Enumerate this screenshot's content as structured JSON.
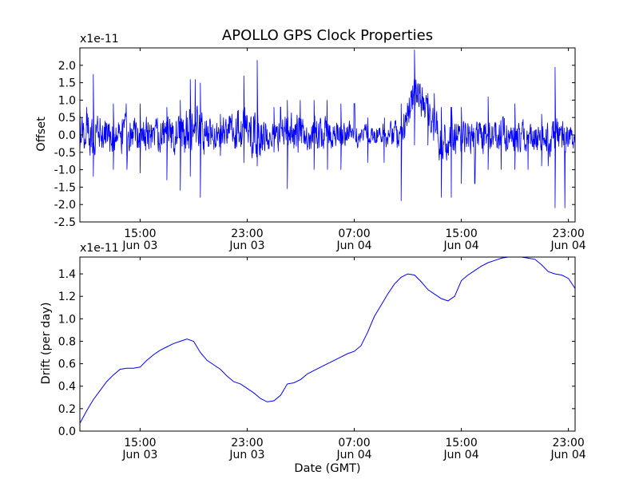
{
  "chart_data": [
    {
      "type": "line",
      "title": "APOLLO GPS Clock Properties",
      "xlabel": "",
      "ylabel": "Offset",
      "multiplier": "x1e-11",
      "ylim": [
        -2.5,
        2.5
      ],
      "yticks": [
        "-2.5",
        "-2.0",
        "-1.5",
        "-1.0",
        "-0.5",
        "0.0",
        "0.5",
        "1.0",
        "1.5",
        "2.0"
      ],
      "xlim": [
        "2009-06-03 10:30",
        "2009-06-04 23:30"
      ],
      "xticks": [
        {
          "time": "2009-06-03 15:00",
          "line1": "15:00",
          "line2": "Jun 03"
        },
        {
          "time": "2009-06-03 23:00",
          "line1": "23:00",
          "line2": "Jun 03"
        },
        {
          "time": "2009-06-04 07:00",
          "line1": "07:00",
          "line2": "Jun 04"
        },
        {
          "time": "2009-06-04 15:00",
          "line1": "15:00",
          "line2": "Jun 04"
        },
        {
          "time": "2009-06-04 23:00",
          "line1": "23:00",
          "line2": "Jun 04"
        }
      ],
      "grid": false,
      "color": "#0000ff",
      "series": [
        {
          "name": "",
          "envelope": [
            {
              "t": "2009-06-03 10:30",
              "center": 0.1,
              "amp": 0.5,
              "spikes": [
                0.8,
                -0.5
              ]
            },
            {
              "t": "2009-06-03 11:30",
              "center": 0.0,
              "amp": 0.6,
              "spikes": [
                1.75,
                -1.2
              ]
            },
            {
              "t": "2009-06-03 13:00",
              "center": 0.0,
              "amp": 0.5,
              "spikes": [
                0.9,
                -1.0
              ]
            },
            {
              "t": "2009-06-03 15:00",
              "center": 0.0,
              "amp": 0.5,
              "spikes": [
                0.9,
                -1.1
              ]
            },
            {
              "t": "2009-06-03 17:00",
              "center": 0.0,
              "amp": 0.5,
              "spikes": [
                0.8,
                -1.3
              ]
            },
            {
              "t": "2009-06-03 18:00",
              "center": -0.1,
              "amp": 0.7,
              "spikes": [
                1.0,
                -1.6
              ]
            },
            {
              "t": "2009-06-03 18:45",
              "center": 0.3,
              "amp": 0.7,
              "spikes": [
                1.6,
                -1.2
              ]
            },
            {
              "t": "2009-06-03 19:30",
              "center": 0.0,
              "amp": 0.6,
              "spikes": [
                1.5,
                -1.8
              ]
            },
            {
              "t": "2009-06-03 21:00",
              "center": 0.0,
              "amp": 0.4,
              "spikes": [
                0.6,
                -0.6
              ]
            },
            {
              "t": "2009-06-03 22:45",
              "center": 0.3,
              "amp": 0.7,
              "spikes": [
                1.7,
                -0.8
              ]
            },
            {
              "t": "2009-06-03 23:45",
              "center": 0.1,
              "amp": 0.7,
              "spikes": [
                2.15,
                -0.9
              ]
            },
            {
              "t": "2009-06-04 01:00",
              "center": 0.0,
              "amp": 0.4,
              "spikes": [
                0.8,
                -0.5
              ]
            },
            {
              "t": "2009-06-04 02:00",
              "center": 0.0,
              "amp": 0.6,
              "spikes": [
                1.0,
                -1.55
              ]
            },
            {
              "t": "2009-06-04 04:00",
              "center": 0.1,
              "amp": 0.5,
              "spikes": [
                1.0,
                -1.0
              ]
            },
            {
              "t": "2009-06-04 06:00",
              "center": 0.0,
              "amp": 0.4,
              "spikes": [
                0.9,
                -1.0
              ]
            },
            {
              "t": "2009-06-04 08:00",
              "center": 0.0,
              "amp": 0.3,
              "spikes": [
                0.5,
                -0.8
              ]
            },
            {
              "t": "2009-06-04 10:30",
              "center": 0.0,
              "amp": 0.4,
              "spikes": [
                0.9,
                -1.9
              ]
            },
            {
              "t": "2009-06-04 11:30",
              "center": 1.3,
              "amp": 0.6,
              "spikes": [
                2.45,
                -0.3
              ]
            },
            {
              "t": "2009-06-04 12:30",
              "center": 0.6,
              "amp": 0.5,
              "spikes": [
                1.2,
                -0.3
              ]
            },
            {
              "t": "2009-06-04 13:30",
              "center": -0.2,
              "amp": 0.6,
              "spikes": [
                0.8,
                -1.8
              ]
            },
            {
              "t": "2009-06-04 15:00",
              "center": 0.0,
              "amp": 0.5,
              "spikes": [
                0.8,
                -1.4
              ]
            },
            {
              "t": "2009-06-04 17:00",
              "center": 0.0,
              "amp": 0.5,
              "spikes": [
                1.1,
                -1.0
              ]
            },
            {
              "t": "2009-06-04 19:00",
              "center": 0.0,
              "amp": 0.5,
              "spikes": [
                0.9,
                -1.0
              ]
            },
            {
              "t": "2009-06-04 21:00",
              "center": 0.0,
              "amp": 0.4,
              "spikes": [
                0.6,
                -0.9
              ]
            },
            {
              "t": "2009-06-04 22:00",
              "center": 0.0,
              "amp": 0.6,
              "spikes": [
                1.95,
                -2.1
              ]
            },
            {
              "t": "2009-06-04 23:30",
              "center": -0.2,
              "amp": 0.4,
              "spikes": [
                0.2,
                -0.6
              ]
            }
          ]
        }
      ]
    },
    {
      "type": "line",
      "title": "",
      "xlabel": "Date (GMT)",
      "ylabel": "Drift (per day)",
      "multiplier": "x1e-11",
      "ylim": [
        0.0,
        1.55
      ],
      "yticks": [
        "0.0",
        "0.2",
        "0.4",
        "0.6",
        "0.8",
        "1.0",
        "1.2",
        "1.4"
      ],
      "xlim": [
        "2009-06-03 10:30",
        "2009-06-04 23:30"
      ],
      "xticks": [
        {
          "time": "2009-06-03 15:00",
          "line1": "15:00",
          "line2": "Jun 03"
        },
        {
          "time": "2009-06-03 23:00",
          "line1": "23:00",
          "line2": "Jun 03"
        },
        {
          "time": "2009-06-04 07:00",
          "line1": "07:00",
          "line2": "Jun 04"
        },
        {
          "time": "2009-06-04 15:00",
          "line1": "15:00",
          "line2": "Jun 04"
        },
        {
          "time": "2009-06-04 23:00",
          "line1": "23:00",
          "line2": "Jun 04"
        }
      ],
      "grid": false,
      "color": "#0000ff",
      "series": [
        {
          "name": "",
          "x": [
            "2009-06-03 10:30",
            "2009-06-03 11:00",
            "2009-06-03 11:30",
            "2009-06-03 12:00",
            "2009-06-03 12:30",
            "2009-06-03 13:00",
            "2009-06-03 13:30",
            "2009-06-03 14:00",
            "2009-06-03 14:30",
            "2009-06-03 15:00",
            "2009-06-03 15:30",
            "2009-06-03 16:00",
            "2009-06-03 16:30",
            "2009-06-03 17:00",
            "2009-06-03 17:30",
            "2009-06-03 18:00",
            "2009-06-03 18:30",
            "2009-06-03 19:00",
            "2009-06-03 19:30",
            "2009-06-03 20:00",
            "2009-06-03 20:30",
            "2009-06-03 21:00",
            "2009-06-03 21:30",
            "2009-06-03 22:00",
            "2009-06-03 22:30",
            "2009-06-03 23:00",
            "2009-06-03 23:30",
            "2009-06-04 00:00",
            "2009-06-04 00:30",
            "2009-06-04 01:00",
            "2009-06-04 01:30",
            "2009-06-04 02:00",
            "2009-06-04 02:30",
            "2009-06-04 03:00",
            "2009-06-04 03:30",
            "2009-06-04 04:00",
            "2009-06-04 04:30",
            "2009-06-04 05:00",
            "2009-06-04 05:30",
            "2009-06-04 06:00",
            "2009-06-04 06:30",
            "2009-06-04 07:00",
            "2009-06-04 07:30",
            "2009-06-04 08:00",
            "2009-06-04 08:30",
            "2009-06-04 09:00",
            "2009-06-04 09:30",
            "2009-06-04 10:00",
            "2009-06-04 10:30",
            "2009-06-04 11:00",
            "2009-06-04 11:30",
            "2009-06-04 12:00",
            "2009-06-04 12:30",
            "2009-06-04 13:00",
            "2009-06-04 13:30",
            "2009-06-04 14:00",
            "2009-06-04 14:30",
            "2009-06-04 15:00",
            "2009-06-04 15:30",
            "2009-06-04 16:00",
            "2009-06-04 16:30",
            "2009-06-04 17:00",
            "2009-06-04 17:30",
            "2009-06-04 18:00",
            "2009-06-04 18:30",
            "2009-06-04 19:00",
            "2009-06-04 19:30",
            "2009-06-04 20:00",
            "2009-06-04 20:30",
            "2009-06-04 21:00",
            "2009-06-04 21:30",
            "2009-06-04 22:00",
            "2009-06-04 22:30",
            "2009-06-04 23:00",
            "2009-06-04 23:30"
          ],
          "values": [
            0.07,
            0.18,
            0.28,
            0.36,
            0.44,
            0.5,
            0.55,
            0.56,
            0.56,
            0.57,
            0.63,
            0.68,
            0.72,
            0.75,
            0.78,
            0.8,
            0.82,
            0.8,
            0.7,
            0.63,
            0.59,
            0.55,
            0.49,
            0.44,
            0.42,
            0.38,
            0.34,
            0.29,
            0.26,
            0.27,
            0.32,
            0.42,
            0.43,
            0.46,
            0.51,
            0.54,
            0.57,
            0.6,
            0.63,
            0.66,
            0.69,
            0.71,
            0.76,
            0.88,
            1.02,
            1.12,
            1.22,
            1.31,
            1.37,
            1.4,
            1.39,
            1.33,
            1.26,
            1.22,
            1.18,
            1.16,
            1.2,
            1.34,
            1.39,
            1.43,
            1.47,
            1.5,
            1.52,
            1.54,
            1.55,
            1.55,
            1.55,
            1.54,
            1.53,
            1.48,
            1.42,
            1.4,
            1.39,
            1.36,
            1.27
          ]
        }
      ]
    }
  ]
}
